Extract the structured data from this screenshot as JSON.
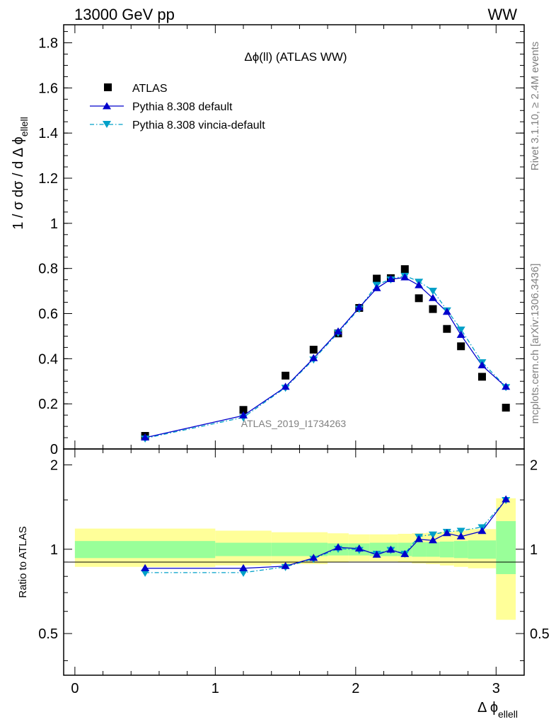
{
  "header": {
    "left": "13000 GeV pp",
    "right": "WW"
  },
  "side": {
    "rivet": "Rivet 3.1.10, ≥ 2.4M events",
    "mcplots": "mcplots.cern.ch [arXiv:1306.3436]"
  },
  "colors": {
    "atlas": "#000000",
    "pythia_default": "#0000cc",
    "pythia_vincia": "#00a0c8",
    "band_inner": "#99ff99",
    "band_outer": "#ffff99"
  },
  "chart_data": [
    {
      "type": "scatter",
      "title": "Δϕ(ll) (ATLAS WW)",
      "watermark": "ATLAS_2019_I1734263",
      "ylabel": "1 / σ  dσ / d Δ ϕ",
      "ylabel_sub": "ellell",
      "xlim": [
        -0.08,
        3.2
      ],
      "ylim": [
        0,
        1.88
      ],
      "yticks": [
        0.2,
        0.4,
        0.6,
        0.8,
        1,
        1.2,
        1.4,
        1.6,
        1.8
      ],
      "ytick_labels": [
        "0.2",
        "0.4",
        "0.6",
        "0.8",
        "1",
        "1.2",
        "1.4",
        "1.6",
        "1.8"
      ],
      "ytick_zero_label": "0",
      "legend": {
        "placement": "top-left",
        "entries": [
          "ATLAS",
          "Pythia 8.308 default",
          "Pythia 8.308 vincia-default"
        ]
      },
      "series": [
        {
          "name": "ATLAS",
          "x": [
            0.5,
            1.2,
            1.5,
            1.7,
            1.875,
            2.025,
            2.15,
            2.25,
            2.35,
            2.45,
            2.55,
            2.65,
            2.75,
            2.9,
            3.07
          ],
          "y": [
            0.058,
            0.173,
            0.325,
            0.44,
            0.512,
            0.625,
            0.755,
            0.757,
            0.797,
            0.668,
            0.62,
            0.532,
            0.455,
            0.32,
            0.183
          ]
        },
        {
          "name": "Pythia 8.308 default",
          "x": [
            0.5,
            1.2,
            1.5,
            1.7,
            1.875,
            2.025,
            2.15,
            2.25,
            2.35,
            2.45,
            2.55,
            2.65,
            2.75,
            2.9,
            3.07
          ],
          "y": [
            0.05,
            0.148,
            0.275,
            0.402,
            0.52,
            0.627,
            0.712,
            0.752,
            0.76,
            0.725,
            0.668,
            0.607,
            0.505,
            0.37,
            0.275
          ]
        },
        {
          "name": "Pythia 8.308 vincia-default",
          "x": [
            0.5,
            1.2,
            1.5,
            1.7,
            1.875,
            2.025,
            2.15,
            2.25,
            2.35,
            2.45,
            2.55,
            2.65,
            2.75,
            2.9,
            3.07
          ],
          "y": [
            0.047,
            0.14,
            0.272,
            0.397,
            0.515,
            0.622,
            0.728,
            0.752,
            0.768,
            0.742,
            0.702,
            0.615,
            0.53,
            0.385,
            0.275
          ]
        }
      ]
    },
    {
      "type": "line",
      "ylabel": "Ratio to ATLAS",
      "xlabel": "Δ ϕ",
      "xlabel_sub": "ellell",
      "xlim": [
        -0.08,
        3.2
      ],
      "ylim": [
        0.355,
        2.28
      ],
      "xticks": [
        0,
        1,
        2,
        3
      ],
      "xtick_labels": [
        "0",
        "1",
        "2",
        "3"
      ],
      "yticks": [
        0.5,
        1,
        2
      ],
      "ytick_labels": [
        "0.5",
        "1",
        "2"
      ],
      "bands": {
        "edges": [
          0,
          1,
          1.4,
          1.8,
          1.95,
          2.1,
          2.2,
          2.3,
          2.4,
          2.5,
          2.6,
          2.7,
          2.8,
          3.0,
          3.14
        ],
        "inner_low": [
          0.93,
          0.945,
          0.945,
          0.95,
          0.95,
          0.945,
          0.945,
          0.945,
          0.94,
          0.94,
          0.935,
          0.93,
          0.925,
          0.815
        ],
        "inner_high": [
          1.07,
          1.055,
          1.055,
          1.05,
          1.05,
          1.055,
          1.055,
          1.055,
          1.06,
          1.06,
          1.065,
          1.07,
          1.075,
          1.26
        ],
        "outer_low": [
          0.865,
          0.875,
          0.885,
          0.9,
          0.905,
          0.905,
          0.905,
          0.9,
          0.89,
          0.885,
          0.875,
          0.865,
          0.855,
          0.56
        ],
        "outer_high": [
          1.185,
          1.165,
          1.15,
          1.14,
          1.13,
          1.13,
          1.13,
          1.135,
          1.14,
          1.145,
          1.155,
          1.165,
          1.18,
          1.52
        ]
      },
      "series": [
        {
          "name": "Pythia 8.308 default",
          "x": [
            0.5,
            1.2,
            1.5,
            1.7,
            1.875,
            2.025,
            2.15,
            2.25,
            2.35,
            2.45,
            2.55,
            2.65,
            2.75,
            2.9,
            3.07
          ],
          "y": [
            0.855,
            0.855,
            0.87,
            0.93,
            1.015,
            1.005,
            0.955,
            0.995,
            0.96,
            1.085,
            1.075,
            1.14,
            1.11,
            1.16,
            1.505
          ]
        },
        {
          "name": "Pythia 8.308 vincia-default",
          "x": [
            0.5,
            1.2,
            1.5,
            1.7,
            1.875,
            2.025,
            2.15,
            2.25,
            2.35,
            2.45,
            2.55,
            2.65,
            2.75,
            2.9,
            3.07
          ],
          "y": [
            0.825,
            0.825,
            0.865,
            0.925,
            1.005,
            0.995,
            0.965,
            0.995,
            0.965,
            1.11,
            1.13,
            1.155,
            1.165,
            1.2,
            1.5
          ]
        }
      ]
    }
  ]
}
